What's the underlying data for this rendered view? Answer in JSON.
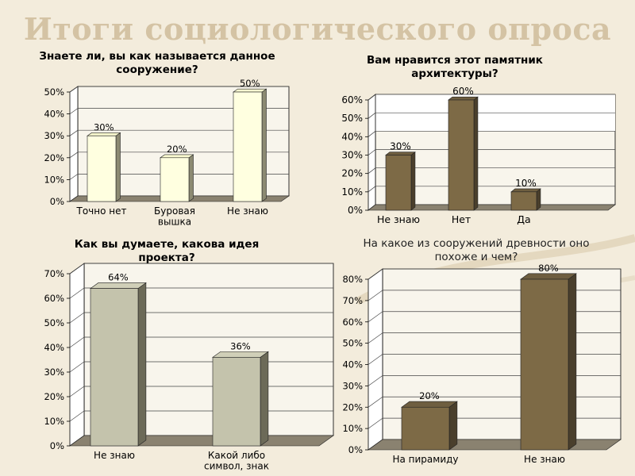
{
  "slide": {
    "title": "Итоги социологического опроса",
    "colors": {
      "background": "#f3ecdc",
      "title": "#d4c3a4"
    }
  },
  "chart_data": [
    {
      "type": "bar",
      "title": "Знаете ли, вы как называется данное сооружение?",
      "categories": [
        "Точно нет",
        "Буровая вышка",
        "Не знаю"
      ],
      "values": [
        30,
        20,
        50
      ],
      "ylim": [
        0,
        50
      ],
      "yticks": [
        0,
        10,
        20,
        30,
        40,
        50
      ],
      "unit": "%",
      "data_labels": [
        "30%",
        "20%",
        "50%"
      ],
      "colors": {
        "front": "#ffffe0",
        "side": "#8c8a72",
        "top": "#fafad0",
        "floor": "#8a8270"
      }
    },
    {
      "type": "bar",
      "title": "Вам нравится этот памятник архитектуры?",
      "categories": [
        "Не знаю",
        "Нет",
        "Да"
      ],
      "values": [
        30,
        60,
        10
      ],
      "ylim": [
        0,
        60
      ],
      "yticks": [
        0,
        10,
        20,
        30,
        40,
        50,
        60
      ],
      "unit": "%",
      "data_labels": [
        "30%",
        "60%",
        "10%"
      ],
      "colors": {
        "front": "#7d6a46",
        "side": "#4a3f2c",
        "top": "#6e5e40",
        "floor": "#8a8270"
      }
    },
    {
      "type": "bar",
      "title": "Как вы думаете, какова идея проекта?",
      "categories": [
        "Не знаю",
        "Какой либо символ, знак"
      ],
      "values": [
        64,
        36
      ],
      "ylim": [
        0,
        70
      ],
      "yticks": [
        0,
        10,
        20,
        30,
        40,
        50,
        60,
        70
      ],
      "unit": "%",
      "data_labels": [
        "64%",
        "36%"
      ],
      "colors": {
        "front": "#c4c3ac",
        "side": "#6c6a58",
        "top": "#d0cfb8",
        "floor": "#8a8270"
      }
    },
    {
      "type": "bar",
      "title": "На какое из сооружений древности оно похоже и чем?",
      "categories": [
        "На пирамиду",
        "Не знаю"
      ],
      "values": [
        20,
        80
      ],
      "ylim": [
        0,
        80
      ],
      "yticks": [
        0,
        10,
        20,
        30,
        40,
        50,
        60,
        70,
        80
      ],
      "unit": "%",
      "data_labels": [
        "20%",
        "80%"
      ],
      "colors": {
        "front": "#7d6a46",
        "side": "#4a3f2c",
        "top": "#6e5e40",
        "floor": "#8a8270"
      }
    }
  ]
}
